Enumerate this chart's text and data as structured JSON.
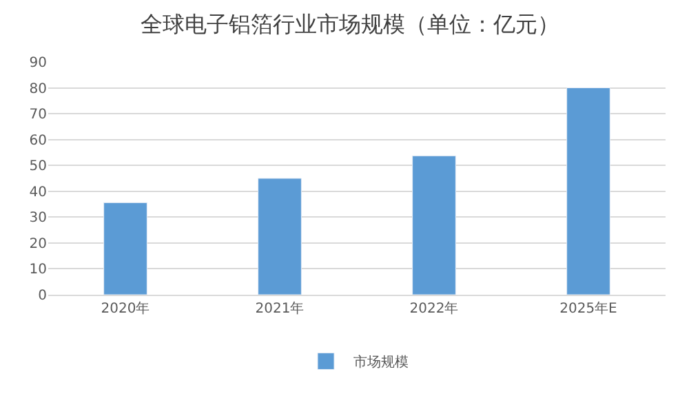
{
  "chart_data": {
    "type": "bar",
    "title": "全球电子铝箔行业市场规模（单位：亿元）",
    "categories": [
      "2020年",
      "2021年",
      "2022年",
      "2025年E"
    ],
    "series": [
      {
        "name": "市场规模",
        "color": "#5b9bd5",
        "values": [
          35.6,
          45,
          53.7,
          80
        ]
      }
    ],
    "ylim": [
      0,
      90
    ],
    "yticks": [
      0,
      10,
      20,
      30,
      40,
      50,
      60,
      70,
      80,
      90
    ],
    "grid": "y",
    "legend": "bottom"
  }
}
